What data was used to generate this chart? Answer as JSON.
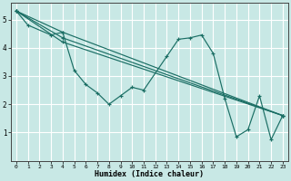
{
  "background_color": "#c8e8e5",
  "line_color": "#1a6e64",
  "grid_color": "#ffffff",
  "xlabel": "Humidex (Indice chaleur)",
  "xlim": [
    -0.5,
    23.5
  ],
  "ylim": [
    0.0,
    5.6
  ],
  "xticks": [
    0,
    1,
    2,
    3,
    4,
    5,
    6,
    7,
    8,
    9,
    10,
    11,
    12,
    13,
    14,
    15,
    16,
    17,
    18,
    19,
    20,
    21,
    22,
    23
  ],
  "yticks": [
    1,
    2,
    3,
    4,
    5
  ],
  "curve_x": [
    0,
    1,
    3,
    4,
    5,
    6,
    7,
    8,
    9,
    10,
    11,
    13,
    14,
    15,
    16,
    17,
    18,
    19,
    20,
    21,
    22,
    23
  ],
  "curve_y": [
    5.3,
    4.8,
    4.45,
    4.55,
    3.2,
    2.7,
    2.4,
    2.0,
    2.3,
    2.6,
    2.5,
    3.7,
    4.3,
    4.35,
    4.45,
    3.8,
    2.2,
    0.85,
    1.1,
    2.3,
    0.75,
    1.6
  ],
  "line1_x": [
    0,
    4,
    23
  ],
  "line1_y": [
    5.3,
    4.55,
    1.6
  ],
  "line2_x": [
    0,
    4,
    23
  ],
  "line2_y": [
    5.3,
    4.35,
    1.6
  ],
  "line3_x": [
    0,
    4,
    23
  ],
  "line3_y": [
    5.3,
    4.2,
    1.6
  ]
}
